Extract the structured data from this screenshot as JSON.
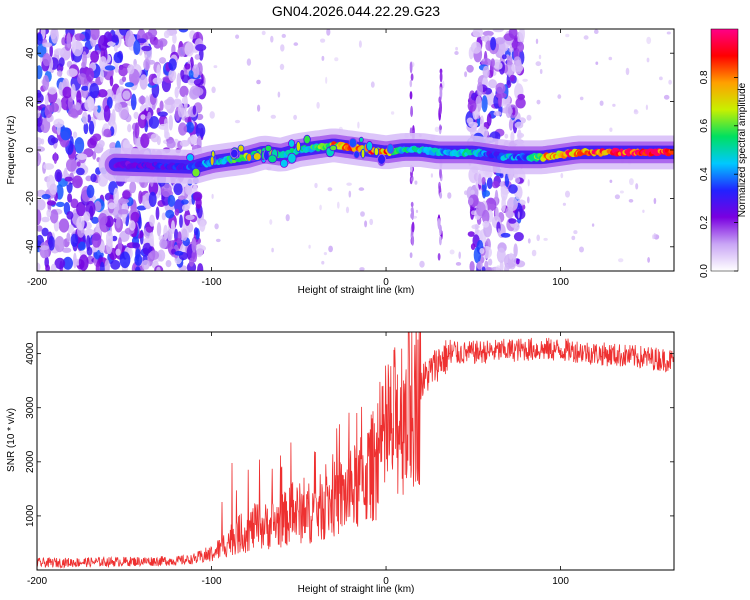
{
  "title": "GN04.2026.044.22.29.G23",
  "chart_data": [
    {
      "type": "heatmap",
      "xlabel": "Height of straight line (km)",
      "ylabel": "Frequency (Hz)",
      "xlim": [
        -200,
        165
      ],
      "ylim": [
        -50,
        50
      ],
      "x_ticks": [
        -200,
        -100,
        0,
        100
      ],
      "y_ticks": [
        -40,
        -20,
        0,
        20,
        40
      ],
      "colorbar": {
        "label": "Normalized spectral amplitude",
        "range": [
          0,
          1
        ],
        "ticks": [
          "0.0",
          "0.2",
          "0.4",
          "0.6",
          "0.8"
        ],
        "colors": [
          "#ffffff",
          "#c9a6f5",
          "#7a00e0",
          "#2222ff",
          "#00c8ff",
          "#00e060",
          "#c8f000",
          "#ffa000",
          "#ff0000",
          "#ff0088"
        ]
      },
      "noise_regions_km": [
        [
          -200,
          -105
        ],
        [
          48,
          78
        ]
      ],
      "ridge": {
        "x": [
          -155,
          -110,
          -100,
          -90,
          -80,
          -70,
          -60,
          -50,
          -40,
          -30,
          -20,
          -10,
          0,
          10,
          20,
          30,
          40,
          50,
          60,
          70,
          80,
          90,
          100,
          110,
          120,
          130,
          140,
          150,
          165
        ],
        "freq": [
          -6,
          -7,
          -5,
          -4,
          -3,
          -1,
          -2,
          0,
          1,
          2,
          1,
          0,
          -1,
          0,
          0,
          -1,
          -1,
          -1,
          -2,
          -3,
          -3,
          -3,
          -2,
          -1,
          -1,
          -1,
          -1,
          -1,
          -1
        ],
        "amplitude": [
          0.25,
          0.35,
          0.45,
          0.55,
          0.6,
          0.65,
          0.6,
          0.5,
          0.55,
          0.75,
          0.85,
          0.85,
          0.8,
          0.5,
          0.45,
          0.45,
          0.45,
          0.5,
          0.3,
          0.45,
          0.35,
          0.75,
          0.85,
          0.9,
          0.95,
          0.95,
          0.95,
          0.95,
          0.95
        ]
      }
    },
    {
      "type": "line",
      "xlabel": "Height of straight line (km)",
      "ylabel": "SNR (10 * v/v)",
      "xlim": [
        -200,
        165
      ],
      "ylim": [
        0,
        4400
      ],
      "x_ticks": [
        -200,
        -100,
        0,
        100
      ],
      "y_ticks": [
        1000,
        2000,
        3000,
        4000
      ],
      "line_color": "#ee3030",
      "series": [
        {
          "x": [
            -200,
            -180,
            -160,
            -140,
            -120,
            -110,
            -100,
            -95,
            -90,
            -85,
            -80,
            -75,
            -70,
            -65,
            -60,
            -55,
            -50,
            -45,
            -40,
            -35,
            -30,
            -25,
            -20,
            -15,
            -10,
            -5,
            0,
            5,
            10,
            15,
            20,
            25,
            30,
            35,
            40,
            50,
            60,
            70,
            80,
            90,
            100,
            110,
            120,
            130,
            140,
            150,
            165
          ],
          "values": [
            130,
            140,
            150,
            160,
            170,
            200,
            300,
            400,
            550,
            650,
            700,
            800,
            800,
            850,
            900,
            1000,
            1050,
            1050,
            1100,
            1200,
            1300,
            1350,
            1450,
            1600,
            1800,
            2050,
            2350,
            2700,
            3000,
            3200,
            3450,
            3650,
            3850,
            3950,
            4000,
            4020,
            4040,
            4060,
            4080,
            4080,
            4070,
            4050,
            4000,
            3980,
            3950,
            3920,
            3870
          ]
        }
      ]
    }
  ]
}
